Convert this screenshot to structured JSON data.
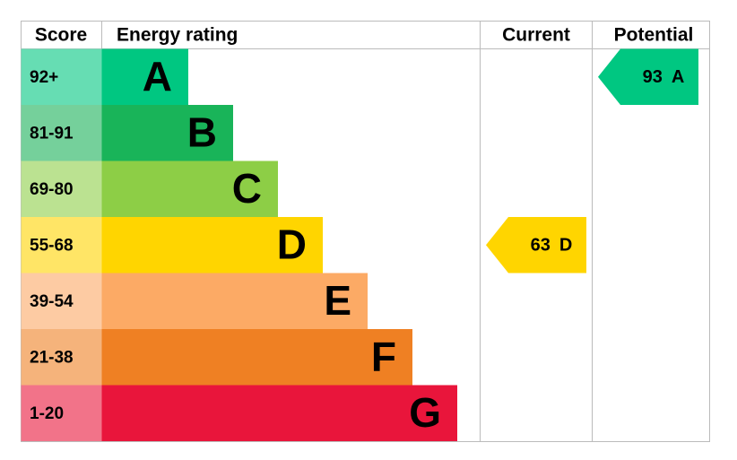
{
  "header": {
    "score": "Score",
    "energy_rating": "Energy rating",
    "current": "Current",
    "potential": "Potential"
  },
  "bands": [
    {
      "score": "92+",
      "letter": "A"
    },
    {
      "score": "81-91",
      "letter": "B"
    },
    {
      "score": "69-80",
      "letter": "C"
    },
    {
      "score": "55-68",
      "letter": "D"
    },
    {
      "score": "39-54",
      "letter": "E"
    },
    {
      "score": "21-38",
      "letter": "F"
    },
    {
      "score": "1-20",
      "letter": "G"
    }
  ],
  "current": {
    "value": 63,
    "letter": "D"
  },
  "potential": {
    "value": 93,
    "letter": "A"
  }
}
